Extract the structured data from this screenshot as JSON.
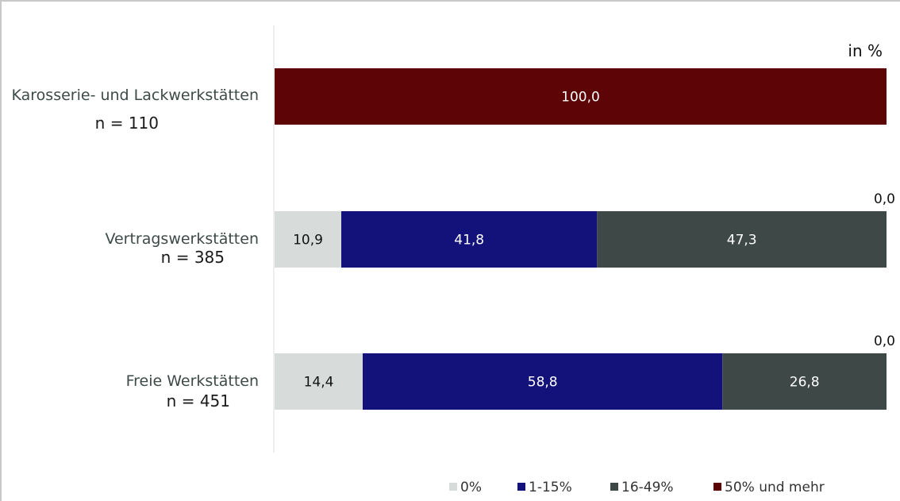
{
  "chart_data": {
    "type": "bar",
    "orientation": "horizontal",
    "stacked": true,
    "unit_label": "in %",
    "categories": [
      {
        "label": "Karosserie- und Lackwerkstätten",
        "n": "n = 110"
      },
      {
        "label": "Vertragswerkstätten",
        "n": "n = 385"
      },
      {
        "label": "Freie Werkstätten",
        "n": "n = 451"
      }
    ],
    "series": [
      {
        "name": "0%",
        "color": "#d7dcdb",
        "values": [
          0,
          10.9,
          14.4
        ],
        "labels": [
          "",
          "10,9",
          "14,4"
        ]
      },
      {
        "name": "1-15%",
        "color": "#12127a",
        "values": [
          0,
          41.8,
          58.8
        ],
        "labels": [
          "",
          "41,8",
          "58,8"
        ]
      },
      {
        "name": "16-49%",
        "color": "#3e4847",
        "values": [
          0,
          47.3,
          26.8
        ],
        "labels": [
          "",
          "47,3",
          "26,8"
        ]
      },
      {
        "name": "50% und mehr",
        "color": "#5c0406",
        "values": [
          100.0,
          0.0,
          0.0
        ],
        "labels": [
          "100,0",
          "0,0",
          "0,0"
        ]
      }
    ],
    "xlim": [
      0,
      100
    ],
    "grid": false,
    "legend_position": "bottom"
  }
}
